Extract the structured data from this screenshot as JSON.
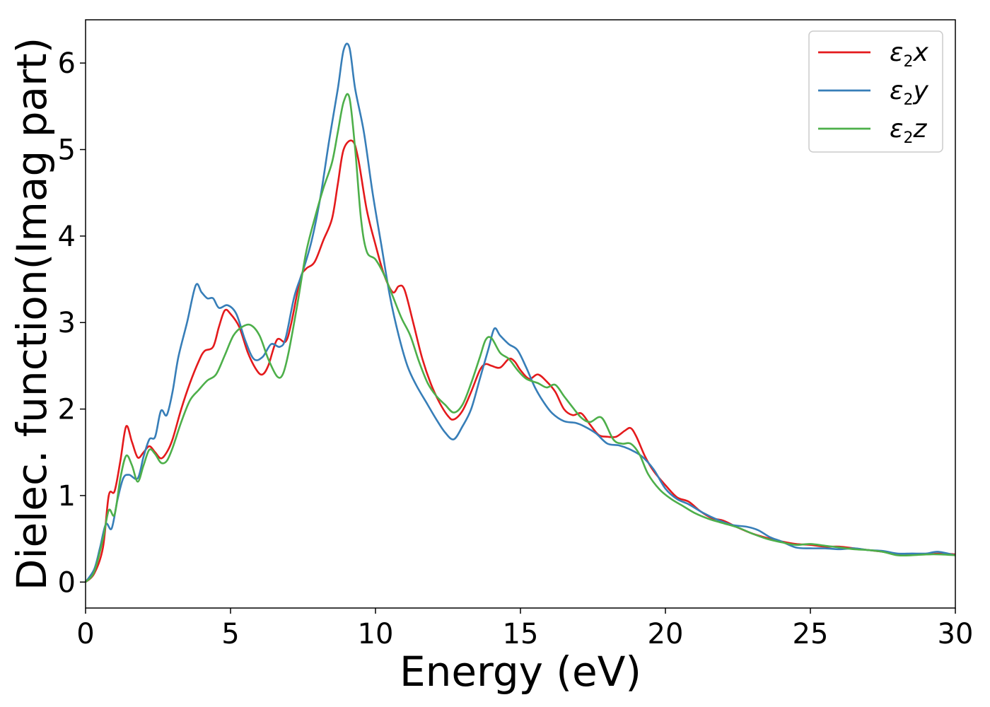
{
  "chart_data": {
    "type": "line",
    "xlabel": "Energy (eV)",
    "ylabel": "Dielec. function(Imag part)",
    "xlim": [
      0,
      30
    ],
    "ylim": [
      -0.3,
      6.5
    ],
    "xticks": [
      "0",
      "5",
      "10",
      "15",
      "20",
      "25",
      "30"
    ],
    "yticks": [
      "0",
      "1",
      "2",
      "3",
      "4",
      "5",
      "6"
    ],
    "grid": false,
    "legend_position": "top-right",
    "series": [
      {
        "name": "ε₂x",
        "symbol": "ε",
        "sub": "2",
        "var": "x",
        "color": "#e41a1c",
        "points": [
          [
            0,
            0.0
          ],
          [
            0.3,
            0.1
          ],
          [
            0.6,
            0.4
          ],
          [
            0.8,
            1.0
          ],
          [
            1.0,
            1.05
          ],
          [
            1.2,
            1.4
          ],
          [
            1.4,
            1.8
          ],
          [
            1.6,
            1.62
          ],
          [
            1.8,
            1.44
          ],
          [
            2.0,
            1.5
          ],
          [
            2.2,
            1.57
          ],
          [
            2.4,
            1.5
          ],
          [
            2.6,
            1.43
          ],
          [
            2.8,
            1.5
          ],
          [
            3.0,
            1.65
          ],
          [
            3.3,
            2.0
          ],
          [
            3.6,
            2.3
          ],
          [
            3.9,
            2.55
          ],
          [
            4.1,
            2.67
          ],
          [
            4.4,
            2.72
          ],
          [
            4.6,
            2.95
          ],
          [
            4.8,
            3.14
          ],
          [
            5.0,
            3.1
          ],
          [
            5.3,
            2.95
          ],
          [
            5.6,
            2.65
          ],
          [
            5.9,
            2.45
          ],
          [
            6.1,
            2.4
          ],
          [
            6.3,
            2.5
          ],
          [
            6.6,
            2.8
          ],
          [
            6.9,
            2.78
          ],
          [
            7.1,
            3.0
          ],
          [
            7.4,
            3.5
          ],
          [
            7.6,
            3.62
          ],
          [
            7.9,
            3.7
          ],
          [
            8.2,
            3.95
          ],
          [
            8.5,
            4.2
          ],
          [
            8.7,
            4.6
          ],
          [
            8.9,
            5.0
          ],
          [
            9.2,
            5.1
          ],
          [
            9.4,
            4.9
          ],
          [
            9.7,
            4.3
          ],
          [
            10.0,
            3.9
          ],
          [
            10.3,
            3.55
          ],
          [
            10.6,
            3.35
          ],
          [
            10.8,
            3.42
          ],
          [
            11.0,
            3.38
          ],
          [
            11.3,
            3.0
          ],
          [
            11.6,
            2.6
          ],
          [
            11.9,
            2.3
          ],
          [
            12.2,
            2.08
          ],
          [
            12.5,
            1.92
          ],
          [
            12.7,
            1.88
          ],
          [
            13.0,
            1.98
          ],
          [
            13.3,
            2.2
          ],
          [
            13.6,
            2.45
          ],
          [
            13.8,
            2.52
          ],
          [
            14.0,
            2.5
          ],
          [
            14.3,
            2.48
          ],
          [
            14.6,
            2.58
          ],
          [
            14.8,
            2.55
          ],
          [
            15.0,
            2.45
          ],
          [
            15.3,
            2.35
          ],
          [
            15.6,
            2.4
          ],
          [
            15.9,
            2.32
          ],
          [
            16.2,
            2.2
          ],
          [
            16.5,
            2.0
          ],
          [
            16.8,
            1.93
          ],
          [
            17.1,
            1.95
          ],
          [
            17.4,
            1.82
          ],
          [
            17.7,
            1.7
          ],
          [
            18.0,
            1.68
          ],
          [
            18.3,
            1.68
          ],
          [
            18.6,
            1.75
          ],
          [
            18.8,
            1.78
          ],
          [
            19.0,
            1.68
          ],
          [
            19.3,
            1.45
          ],
          [
            19.6,
            1.28
          ],
          [
            20.0,
            1.12
          ],
          [
            20.4,
            0.98
          ],
          [
            20.8,
            0.93
          ],
          [
            21.2,
            0.82
          ],
          [
            21.6,
            0.74
          ],
          [
            22.0,
            0.71
          ],
          [
            22.5,
            0.63
          ],
          [
            23.0,
            0.56
          ],
          [
            23.5,
            0.51
          ],
          [
            24.0,
            0.47
          ],
          [
            24.5,
            0.44
          ],
          [
            25.0,
            0.43
          ],
          [
            25.5,
            0.41
          ],
          [
            26.0,
            0.41
          ],
          [
            26.5,
            0.39
          ],
          [
            27.0,
            0.37
          ],
          [
            27.5,
            0.35
          ],
          [
            28.0,
            0.32
          ],
          [
            28.5,
            0.32
          ],
          [
            29.0,
            0.32
          ],
          [
            29.5,
            0.33
          ],
          [
            30.0,
            0.32
          ]
        ]
      },
      {
        "name": "ε₂y",
        "symbol": "ε",
        "sub": "2",
        "var": "y",
        "color": "#377eb8",
        "points": [
          [
            0,
            0.0
          ],
          [
            0.3,
            0.15
          ],
          [
            0.5,
            0.4
          ],
          [
            0.7,
            0.67
          ],
          [
            0.9,
            0.62
          ],
          [
            1.1,
            0.95
          ],
          [
            1.3,
            1.2
          ],
          [
            1.5,
            1.24
          ],
          [
            1.8,
            1.2
          ],
          [
            2.0,
            1.45
          ],
          [
            2.2,
            1.65
          ],
          [
            2.4,
            1.68
          ],
          [
            2.6,
            1.98
          ],
          [
            2.8,
            1.93
          ],
          [
            3.0,
            2.2
          ],
          [
            3.2,
            2.6
          ],
          [
            3.5,
            3.0
          ],
          [
            3.8,
            3.43
          ],
          [
            4.0,
            3.35
          ],
          [
            4.2,
            3.28
          ],
          [
            4.4,
            3.28
          ],
          [
            4.6,
            3.17
          ],
          [
            4.9,
            3.2
          ],
          [
            5.2,
            3.1
          ],
          [
            5.5,
            2.8
          ],
          [
            5.8,
            2.58
          ],
          [
            6.1,
            2.6
          ],
          [
            6.4,
            2.75
          ],
          [
            6.7,
            2.72
          ],
          [
            6.9,
            2.82
          ],
          [
            7.2,
            3.3
          ],
          [
            7.5,
            3.6
          ],
          [
            7.8,
            3.95
          ],
          [
            8.1,
            4.45
          ],
          [
            8.4,
            5.1
          ],
          [
            8.7,
            5.7
          ],
          [
            8.9,
            6.15
          ],
          [
            9.1,
            6.18
          ],
          [
            9.3,
            5.7
          ],
          [
            9.6,
            5.2
          ],
          [
            9.9,
            4.5
          ],
          [
            10.2,
            3.9
          ],
          [
            10.5,
            3.3
          ],
          [
            10.8,
            2.85
          ],
          [
            11.1,
            2.5
          ],
          [
            11.4,
            2.28
          ],
          [
            11.8,
            2.05
          ],
          [
            12.1,
            1.88
          ],
          [
            12.4,
            1.73
          ],
          [
            12.7,
            1.65
          ],
          [
            13.0,
            1.8
          ],
          [
            13.3,
            2.0
          ],
          [
            13.6,
            2.35
          ],
          [
            13.9,
            2.7
          ],
          [
            14.1,
            2.93
          ],
          [
            14.3,
            2.85
          ],
          [
            14.6,
            2.75
          ],
          [
            14.9,
            2.68
          ],
          [
            15.2,
            2.48
          ],
          [
            15.5,
            2.25
          ],
          [
            15.8,
            2.08
          ],
          [
            16.1,
            1.95
          ],
          [
            16.5,
            1.86
          ],
          [
            16.9,
            1.84
          ],
          [
            17.2,
            1.8
          ],
          [
            17.6,
            1.72
          ],
          [
            18.0,
            1.6
          ],
          [
            18.4,
            1.58
          ],
          [
            18.8,
            1.53
          ],
          [
            19.2,
            1.45
          ],
          [
            19.6,
            1.3
          ],
          [
            20.0,
            1.08
          ],
          [
            20.4,
            0.96
          ],
          [
            20.8,
            0.9
          ],
          [
            21.3,
            0.8
          ],
          [
            21.8,
            0.72
          ],
          [
            22.3,
            0.66
          ],
          [
            22.8,
            0.64
          ],
          [
            23.2,
            0.6
          ],
          [
            23.6,
            0.52
          ],
          [
            24.0,
            0.47
          ],
          [
            24.5,
            0.4
          ],
          [
            25.0,
            0.39
          ],
          [
            25.5,
            0.39
          ],
          [
            26.0,
            0.38
          ],
          [
            26.5,
            0.39
          ],
          [
            27.0,
            0.37
          ],
          [
            27.5,
            0.36
          ],
          [
            28.0,
            0.33
          ],
          [
            28.5,
            0.33
          ],
          [
            29.0,
            0.33
          ],
          [
            29.4,
            0.35
          ],
          [
            30.0,
            0.31
          ]
        ]
      },
      {
        "name": "ε₂z",
        "symbol": "ε",
        "sub": "2",
        "var": "z",
        "color": "#4daf4a",
        "points": [
          [
            0,
            0.0
          ],
          [
            0.3,
            0.12
          ],
          [
            0.6,
            0.5
          ],
          [
            0.8,
            0.83
          ],
          [
            1.0,
            0.78
          ],
          [
            1.2,
            1.2
          ],
          [
            1.4,
            1.46
          ],
          [
            1.6,
            1.35
          ],
          [
            1.8,
            1.16
          ],
          [
            2.0,
            1.35
          ],
          [
            2.2,
            1.53
          ],
          [
            2.4,
            1.48
          ],
          [
            2.6,
            1.38
          ],
          [
            2.8,
            1.4
          ],
          [
            3.0,
            1.55
          ],
          [
            3.3,
            1.85
          ],
          [
            3.6,
            2.1
          ],
          [
            3.9,
            2.22
          ],
          [
            4.2,
            2.33
          ],
          [
            4.5,
            2.4
          ],
          [
            4.8,
            2.62
          ],
          [
            5.1,
            2.85
          ],
          [
            5.4,
            2.95
          ],
          [
            5.7,
            2.97
          ],
          [
            6.0,
            2.85
          ],
          [
            6.3,
            2.58
          ],
          [
            6.6,
            2.38
          ],
          [
            6.8,
            2.4
          ],
          [
            7.0,
            2.65
          ],
          [
            7.3,
            3.2
          ],
          [
            7.6,
            3.8
          ],
          [
            7.9,
            4.2
          ],
          [
            8.2,
            4.55
          ],
          [
            8.5,
            4.85
          ],
          [
            8.7,
            5.2
          ],
          [
            8.9,
            5.55
          ],
          [
            9.1,
            5.6
          ],
          [
            9.3,
            5.0
          ],
          [
            9.5,
            4.2
          ],
          [
            9.7,
            3.82
          ],
          [
            10.0,
            3.73
          ],
          [
            10.3,
            3.55
          ],
          [
            10.6,
            3.3
          ],
          [
            10.9,
            3.05
          ],
          [
            11.2,
            2.85
          ],
          [
            11.5,
            2.55
          ],
          [
            11.8,
            2.3
          ],
          [
            12.1,
            2.15
          ],
          [
            12.4,
            2.05
          ],
          [
            12.7,
            1.96
          ],
          [
            13.0,
            2.05
          ],
          [
            13.3,
            2.3
          ],
          [
            13.6,
            2.6
          ],
          [
            13.8,
            2.8
          ],
          [
            14.0,
            2.82
          ],
          [
            14.3,
            2.65
          ],
          [
            14.6,
            2.58
          ],
          [
            14.9,
            2.45
          ],
          [
            15.2,
            2.35
          ],
          [
            15.6,
            2.3
          ],
          [
            15.9,
            2.25
          ],
          [
            16.2,
            2.28
          ],
          [
            16.5,
            2.15
          ],
          [
            16.8,
            2.02
          ],
          [
            17.1,
            1.9
          ],
          [
            17.4,
            1.85
          ],
          [
            17.8,
            1.9
          ],
          [
            18.2,
            1.65
          ],
          [
            18.5,
            1.6
          ],
          [
            18.8,
            1.6
          ],
          [
            19.1,
            1.48
          ],
          [
            19.4,
            1.25
          ],
          [
            19.8,
            1.07
          ],
          [
            20.2,
            0.96
          ],
          [
            20.6,
            0.88
          ],
          [
            21.0,
            0.8
          ],
          [
            21.5,
            0.73
          ],
          [
            22.0,
            0.68
          ],
          [
            22.5,
            0.63
          ],
          [
            23.0,
            0.56
          ],
          [
            23.5,
            0.5
          ],
          [
            24.0,
            0.46
          ],
          [
            24.5,
            0.43
          ],
          [
            25.0,
            0.44
          ],
          [
            25.5,
            0.42
          ],
          [
            26.0,
            0.4
          ],
          [
            26.5,
            0.38
          ],
          [
            27.0,
            0.37
          ],
          [
            27.5,
            0.35
          ],
          [
            28.0,
            0.31
          ],
          [
            28.5,
            0.31
          ],
          [
            29.0,
            0.32
          ],
          [
            29.5,
            0.32
          ],
          [
            30.0,
            0.31
          ]
        ]
      }
    ]
  }
}
